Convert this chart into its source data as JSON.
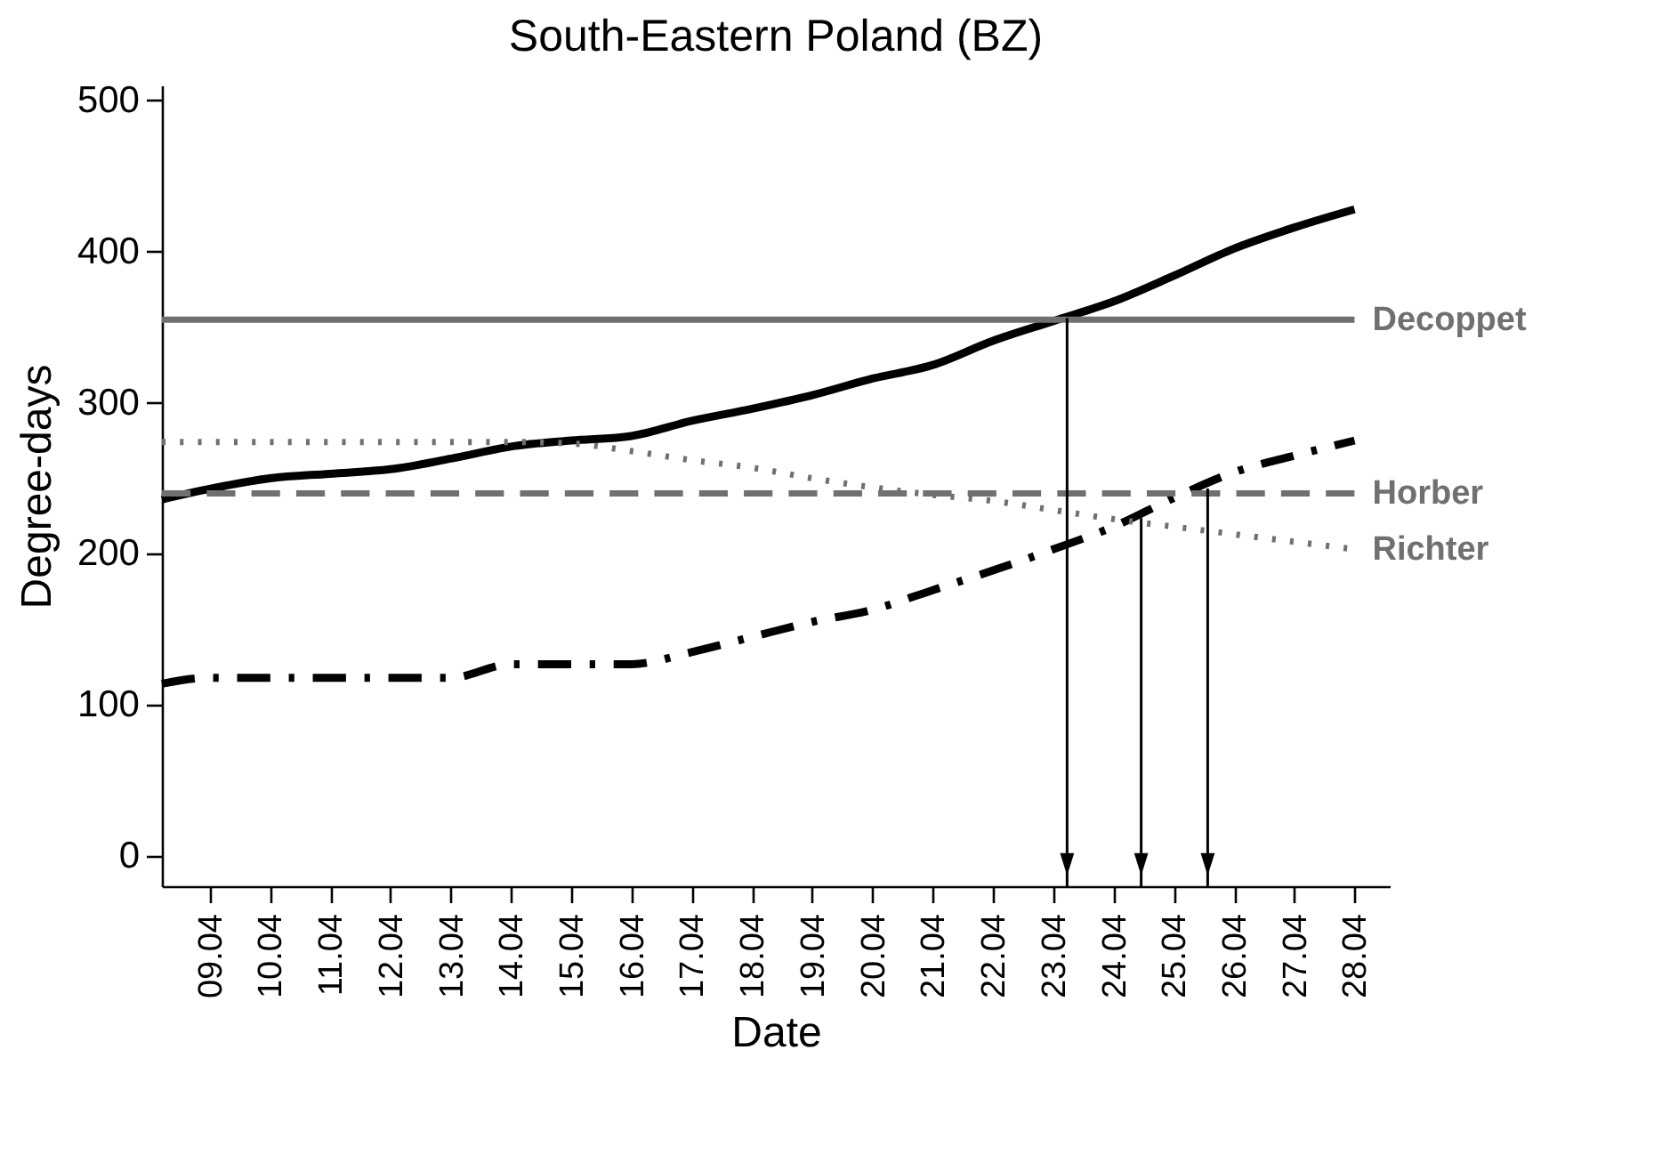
{
  "chart_data": {
    "type": "line",
    "title": "South-Eastern Poland (BZ)",
    "xlabel": "Date",
    "ylabel": "Degree-days",
    "x": [
      "--04-08T05:00",
      "--04-09",
      "--04-10",
      "--04-11",
      "--04-12",
      "--04-13",
      "--04-14",
      "--04-15",
      "--04-16",
      "--04-17",
      "--04-18",
      "--04-19",
      "--04-20",
      "--04-21",
      "--04-22",
      "--04-23",
      "--04-24",
      "--04-25",
      "--04-26",
      "--04-27",
      "--04-28"
    ],
    "xlim": [
      "--04-08T05:00",
      "--04-28T14:00"
    ],
    "xticks": [
      {
        "value": "--04-09",
        "label": "09.04"
      },
      {
        "value": "--04-10",
        "label": "10.04"
      },
      {
        "value": "--04-11",
        "label": "11.04"
      },
      {
        "value": "--04-12",
        "label": "12.04"
      },
      {
        "value": "--04-13",
        "label": "13.04"
      },
      {
        "value": "--04-14",
        "label": "14.04"
      },
      {
        "value": "--04-15",
        "label": "15.04"
      },
      {
        "value": "--04-16",
        "label": "16.04"
      },
      {
        "value": "--04-17",
        "label": "17.04"
      },
      {
        "value": "--04-18",
        "label": "18.04"
      },
      {
        "value": "--04-19",
        "label": "19.04"
      },
      {
        "value": "--04-20",
        "label": "20.04"
      },
      {
        "value": "--04-21",
        "label": "21.04"
      },
      {
        "value": "--04-22",
        "label": "22.04"
      },
      {
        "value": "--04-23",
        "label": "23.04"
      },
      {
        "value": "--04-24",
        "label": "24.04"
      },
      {
        "value": "--04-25",
        "label": "25.04"
      },
      {
        "value": "--04-26",
        "label": "26.04"
      },
      {
        "value": "--04-27",
        "label": "27.04"
      },
      {
        "value": "--04-28",
        "label": "28.04"
      }
    ],
    "ylim": [
      -20,
      510
    ],
    "yticks": [
      0,
      100,
      200,
      300,
      400,
      500
    ],
    "grid": false,
    "series": [
      {
        "color": "#000000",
        "line_style": "solid",
        "values": [
          236,
          243,
          250,
          253,
          256,
          263,
          271,
          275,
          278,
          288,
          296,
          305,
          316,
          325,
          341,
          354,
          367,
          384,
          402,
          416,
          428
        ]
      },
      {
        "color": "#000000",
        "line_style": "dashdot",
        "values": [
          114,
          118,
          118,
          118,
          118,
          118,
          127,
          127,
          127,
          135,
          145,
          155,
          163,
          176,
          189,
          203,
          218,
          237,
          254,
          265,
          275
        ]
      },
      {
        "name": "Decoppet",
        "color": "#707070",
        "line_style": "solid",
        "values": [
          355,
          355,
          355,
          355,
          355,
          355,
          355,
          355,
          355,
          355,
          355,
          355,
          355,
          355,
          355,
          355,
          355,
          355,
          355,
          355,
          355
        ]
      },
      {
        "name": "Horber",
        "color": "#707070",
        "line_style": "dashed",
        "values": [
          240,
          240,
          240,
          240,
          240,
          240,
          240,
          240,
          240,
          240,
          240,
          240,
          240,
          240,
          240,
          240,
          240,
          240,
          240,
          240,
          240
        ]
      },
      {
        "name": "Richter",
        "color": "#707070",
        "line_style": "dotted",
        "values": [
          274,
          274,
          274,
          274,
          274,
          274,
          274,
          273,
          268,
          262,
          257,
          250,
          244,
          239,
          235,
          229,
          223,
          218,
          213,
          208,
          203
        ]
      }
    ],
    "ref_lines": [
      {
        "axis": "x",
        "value": "--04-23T05:30"
      },
      {
        "axis": "x",
        "value": "--04-24T11:00"
      },
      {
        "axis": "x",
        "value": "--04-25T13:30"
      }
    ]
  }
}
